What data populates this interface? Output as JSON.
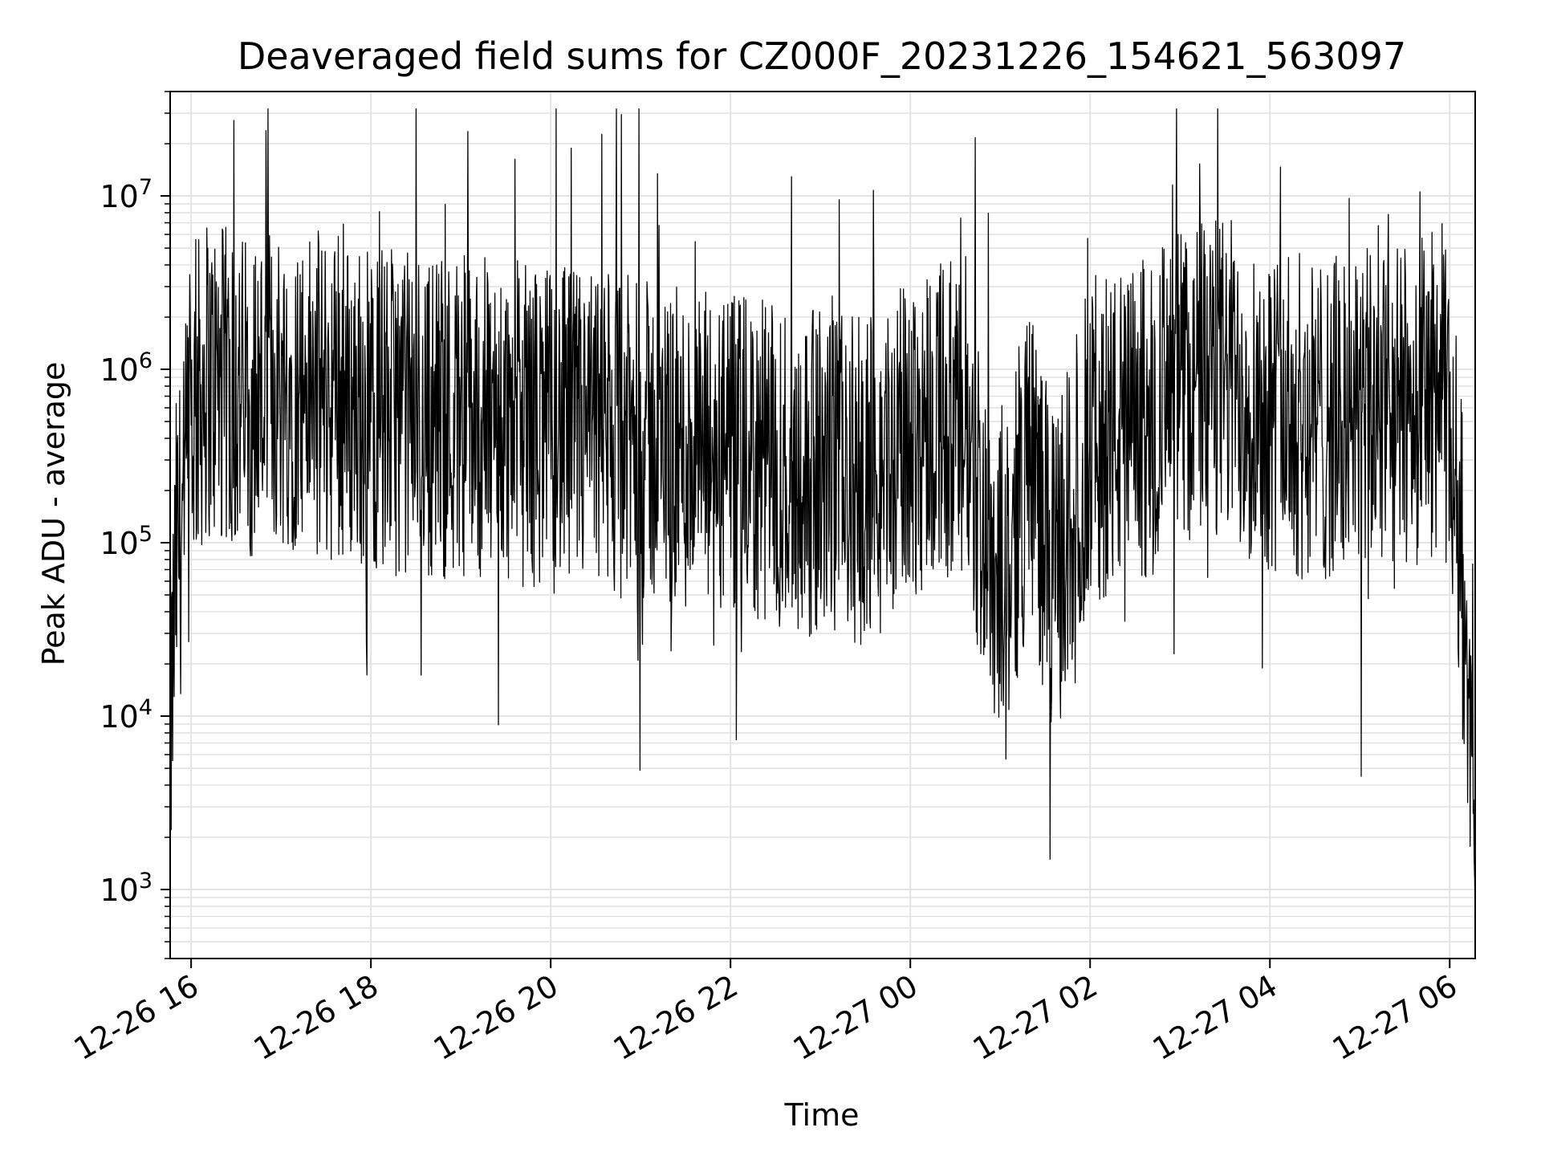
{
  "chart_data": {
    "type": "line",
    "title": "Deaveraged field sums for CZ000F_20231226_154621_563097",
    "xlabel": "Time",
    "ylabel": "Peak ADU - average",
    "y_scale": "log",
    "ylim": [
      400,
      40000000
    ],
    "xlim": [
      "2023-12-26 15:46",
      "2023-12-27 06:17"
    ],
    "grid": "major and minor, light gray",
    "line_color": "#000000",
    "x_ticks": [
      {
        "value": "2023-12-26 16:00",
        "label": "12-26 16"
      },
      {
        "value": "2023-12-26 18:00",
        "label": "12-26 18"
      },
      {
        "value": "2023-12-26 20:00",
        "label": "12-26 20"
      },
      {
        "value": "2023-12-26 22:00",
        "label": "12-26 22"
      },
      {
        "value": "2023-12-27 00:00",
        "label": "12-27 00"
      },
      {
        "value": "2023-12-27 02:00",
        "label": "12-27 02"
      },
      {
        "value": "2023-12-27 04:00",
        "label": "12-27 04"
      },
      {
        "value": "2023-12-27 06:00",
        "label": "12-27 06"
      }
    ],
    "y_ticks": [
      {
        "value": 1000,
        "base": "10",
        "exp": "3"
      },
      {
        "value": 10000,
        "base": "10",
        "exp": "4"
      },
      {
        "value": 100000,
        "base": "10",
        "exp": "5"
      },
      {
        "value": 1000000,
        "base": "10",
        "exp": "6"
      },
      {
        "value": 10000000,
        "base": "10",
        "exp": "7"
      }
    ],
    "series": [
      {
        "x": [
          "2023-12-26 15:46",
          "2023-12-26 15:50",
          "2023-12-26 15:55",
          "2023-12-26 16:00",
          "2023-12-26 16:10",
          "2023-12-26 16:30",
          "2023-12-26 17:00",
          "2023-12-26 17:30",
          "2023-12-26 18:00",
          "2023-12-26 18:30",
          "2023-12-26 19:00",
          "2023-12-26 19:30",
          "2023-12-26 20:00",
          "2023-12-26 20:30",
          "2023-12-26 21:00",
          "2023-12-26 21:30",
          "2023-12-26 22:00",
          "2023-12-26 22:30",
          "2023-12-26 23:00",
          "2023-12-26 23:30",
          "2023-12-27 00:00",
          "2023-12-27 00:20",
          "2023-12-27 00:40",
          "2023-12-27 00:55",
          "2023-12-27 01:05",
          "2023-12-27 01:20",
          "2023-12-27 01:35",
          "2023-12-27 01:45",
          "2023-12-27 02:00",
          "2023-12-27 02:30",
          "2023-12-27 03:00",
          "2023-12-27 03:30",
          "2023-12-27 04:00",
          "2023-12-27 04:30",
          "2023-12-27 05:00",
          "2023-12-27 05:30",
          "2023-12-27 05:55",
          "2023-12-27 06:05",
          "2023-12-27 06:10",
          "2023-12-27 06:14",
          "2023-12-27 06:17"
        ],
        "y": [
          6000,
          80000,
          150000,
          500000,
          900000,
          700000,
          800000,
          700000,
          600000,
          550000,
          550000,
          500000,
          450000,
          420000,
          380000,
          330000,
          300000,
          280000,
          250000,
          220000,
          400000,
          600000,
          300000,
          80000,
          70000,
          350000,
          60000,
          120000,
          400000,
          450000,
          800000,
          900000,
          600000,
          500000,
          550000,
          600000,
          800000,
          200000,
          40000,
          15000,
          700
        ]
      }
    ]
  }
}
